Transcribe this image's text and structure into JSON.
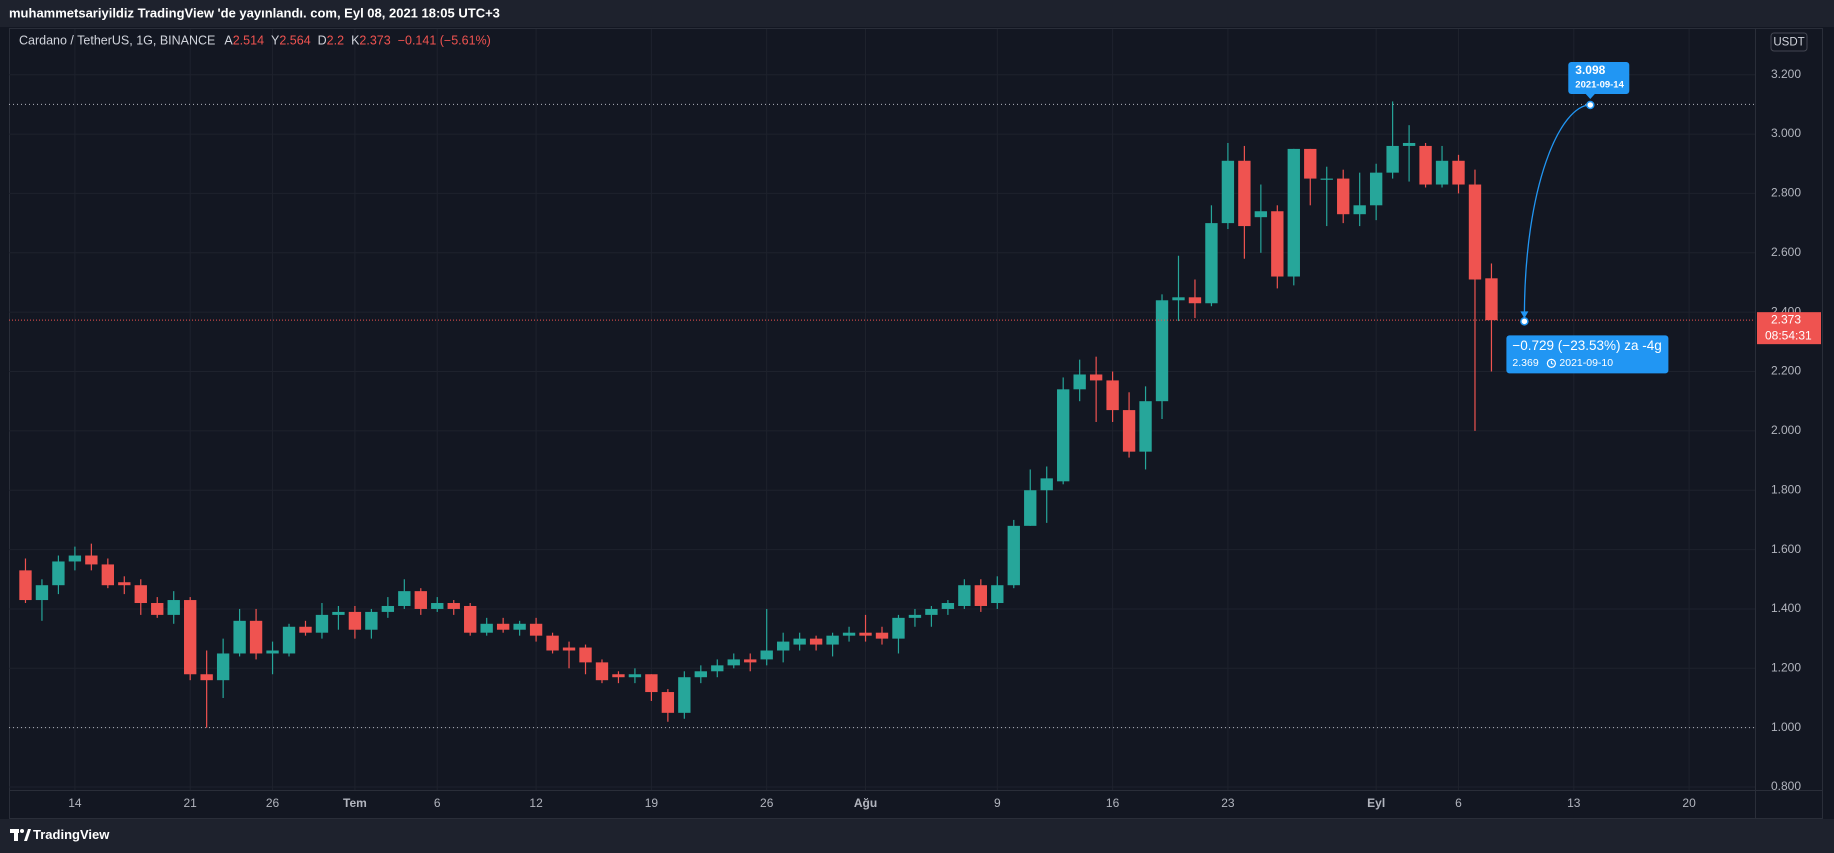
{
  "header": {
    "publisher": "muhammetsariyildiz TradingView 'de yayınlandı. com, Eyl 08, 2021 18:05 UTC+3"
  },
  "footer": {
    "brand": "TradingView"
  },
  "chart_data": {
    "type": "candlestick",
    "legend": {
      "symbol": "Cardano / TetherUS, 1G, BINANCE",
      "labels": [
        "A",
        "Y",
        "D",
        "K"
      ],
      "change": "−0.141 (−5.61%)"
    },
    "currency": "USDT",
    "countdown": "08:54:31",
    "up_color": "#26a69a",
    "down_color": "#ef5350",
    "grid": true,
    "x": [
      "2021-06-11",
      "2021-06-12",
      "2021-06-13",
      "2021-06-14",
      "2021-06-15",
      "2021-06-16",
      "2021-06-17",
      "2021-06-18",
      "2021-06-19",
      "2021-06-20",
      "2021-06-21",
      "2021-06-22",
      "2021-06-23",
      "2021-06-24",
      "2021-06-25",
      "2021-06-26",
      "2021-06-27",
      "2021-06-28",
      "2021-06-29",
      "2021-06-30",
      "2021-07-01",
      "2021-07-02",
      "2021-07-03",
      "2021-07-04",
      "2021-07-05",
      "2021-07-06",
      "2021-07-07",
      "2021-07-08",
      "2021-07-09",
      "2021-07-10",
      "2021-07-11",
      "2021-07-12",
      "2021-07-13",
      "2021-07-14",
      "2021-07-15",
      "2021-07-16",
      "2021-07-17",
      "2021-07-18",
      "2021-07-19",
      "2021-07-20",
      "2021-07-21",
      "2021-07-22",
      "2021-07-23",
      "2021-07-24",
      "2021-07-25",
      "2021-07-26",
      "2021-07-27",
      "2021-07-28",
      "2021-07-29",
      "2021-07-30",
      "2021-07-31",
      "2021-08-01",
      "2021-08-02",
      "2021-08-03",
      "2021-08-04",
      "2021-08-05",
      "2021-08-06",
      "2021-08-07",
      "2021-08-08",
      "2021-08-09",
      "2021-08-10",
      "2021-08-11",
      "2021-08-12",
      "2021-08-13",
      "2021-08-14",
      "2021-08-15",
      "2021-08-16",
      "2021-08-17",
      "2021-08-18",
      "2021-08-19",
      "2021-08-20",
      "2021-08-21",
      "2021-08-22",
      "2021-08-23",
      "2021-08-24",
      "2021-08-25",
      "2021-08-26",
      "2021-08-27",
      "2021-08-28",
      "2021-08-29",
      "2021-08-30",
      "2021-08-31",
      "2021-09-01",
      "2021-09-02",
      "2021-09-03",
      "2021-09-04",
      "2021-09-05",
      "2021-09-06",
      "2021-09-07",
      "2021-09-08"
    ],
    "open": [
      1.53,
      1.43,
      1.48,
      1.56,
      1.58,
      1.55,
      1.49,
      1.48,
      1.42,
      1.38,
      1.43,
      1.18,
      1.16,
      1.25,
      1.36,
      1.25,
      1.25,
      1.34,
      1.32,
      1.38,
      1.39,
      1.33,
      1.39,
      1.41,
      1.46,
      1.4,
      1.42,
      1.41,
      1.32,
      1.35,
      1.33,
      1.35,
      1.31,
      1.27,
      1.27,
      1.22,
      1.18,
      1.17,
      1.18,
      1.12,
      1.05,
      1.17,
      1.19,
      1.21,
      1.23,
      1.23,
      1.26,
      1.28,
      1.3,
      1.28,
      1.31,
      1.32,
      1.32,
      1.3,
      1.37,
      1.38,
      1.4,
      1.41,
      1.48,
      1.42,
      1.48,
      1.68,
      1.8,
      1.83,
      2.14,
      2.19,
      2.17,
      2.07,
      1.93,
      2.1,
      2.44,
      2.45,
      2.43,
      2.7,
      2.91,
      2.72,
      2.74,
      2.52,
      2.95,
      2.85,
      2.85,
      2.73,
      2.76,
      2.87,
      2.96,
      2.96,
      2.83,
      2.91,
      2.83,
      2.514
    ],
    "high": [
      1.57,
      1.5,
      1.58,
      1.61,
      1.62,
      1.57,
      1.51,
      1.5,
      1.44,
      1.46,
      1.44,
      1.26,
      1.3,
      1.4,
      1.4,
      1.29,
      1.35,
      1.36,
      1.42,
      1.41,
      1.41,
      1.4,
      1.44,
      1.5,
      1.47,
      1.44,
      1.43,
      1.42,
      1.37,
      1.37,
      1.36,
      1.37,
      1.32,
      1.29,
      1.28,
      1.23,
      1.19,
      1.2,
      1.18,
      1.13,
      1.19,
      1.21,
      1.23,
      1.25,
      1.25,
      1.4,
      1.32,
      1.32,
      1.31,
      1.32,
      1.34,
      1.38,
      1.34,
      1.38,
      1.4,
      1.41,
      1.43,
      1.5,
      1.5,
      1.51,
      1.7,
      1.87,
      1.88,
      2.18,
      2.24,
      2.25,
      2.2,
      2.13,
      2.15,
      2.46,
      2.59,
      2.51,
      2.76,
      2.97,
      2.96,
      2.83,
      2.76,
      2.95,
      2.95,
      2.89,
      2.88,
      2.87,
      2.9,
      3.11,
      3.03,
      2.97,
      2.96,
      2.93,
      2.88,
      2.564
    ],
    "low": [
      1.42,
      1.36,
      1.45,
      1.53,
      1.53,
      1.47,
      1.45,
      1.38,
      1.37,
      1.35,
      1.16,
      1.0,
      1.1,
      1.24,
      1.23,
      1.18,
      1.24,
      1.31,
      1.3,
      1.33,
      1.3,
      1.3,
      1.37,
      1.4,
      1.38,
      1.39,
      1.38,
      1.31,
      1.31,
      1.32,
      1.31,
      1.29,
      1.25,
      1.2,
      1.18,
      1.15,
      1.15,
      1.15,
      1.09,
      1.02,
      1.03,
      1.15,
      1.17,
      1.2,
      1.19,
      1.21,
      1.22,
      1.26,
      1.26,
      1.24,
      1.29,
      1.29,
      1.28,
      1.25,
      1.34,
      1.34,
      1.38,
      1.4,
      1.39,
      1.4,
      1.47,
      1.68,
      1.69,
      1.82,
      2.1,
      2.03,
      2.03,
      1.91,
      1.87,
      2.04,
      2.37,
      2.38,
      2.42,
      2.68,
      2.58,
      2.6,
      2.48,
      2.49,
      2.76,
      2.69,
      2.7,
      2.69,
      2.71,
      2.85,
      2.84,
      2.82,
      2.82,
      2.8,
      2.0,
      2.2
    ],
    "close": [
      1.43,
      1.48,
      1.56,
      1.58,
      1.55,
      1.48,
      1.48,
      1.42,
      1.38,
      1.43,
      1.18,
      1.16,
      1.25,
      1.36,
      1.25,
      1.26,
      1.34,
      1.32,
      1.38,
      1.39,
      1.33,
      1.39,
      1.41,
      1.46,
      1.4,
      1.42,
      1.4,
      1.32,
      1.35,
      1.33,
      1.35,
      1.31,
      1.26,
      1.26,
      1.22,
      1.16,
      1.17,
      1.18,
      1.12,
      1.05,
      1.17,
      1.19,
      1.21,
      1.23,
      1.22,
      1.26,
      1.29,
      1.3,
      1.28,
      1.31,
      1.32,
      1.31,
      1.3,
      1.37,
      1.38,
      1.4,
      1.42,
      1.48,
      1.41,
      1.48,
      1.68,
      1.8,
      1.84,
      2.14,
      2.19,
      2.17,
      2.07,
      1.93,
      2.1,
      2.44,
      2.45,
      2.43,
      2.7,
      2.91,
      2.69,
      2.74,
      2.52,
      2.95,
      2.85,
      2.85,
      2.73,
      2.76,
      2.87,
      2.96,
      2.97,
      2.83,
      2.91,
      2.83,
      2.51,
      2.373
    ],
    "xlim": [
      "2021-06-10",
      "2021-09-24"
    ],
    "xticks": [
      {
        "value": "2021-06-14",
        "label": "14"
      },
      {
        "value": "2021-06-21",
        "label": "21"
      },
      {
        "value": "2021-06-26",
        "label": "26"
      },
      {
        "value": "2021-07-01",
        "label": "Tem"
      },
      {
        "value": "2021-07-06",
        "label": "6"
      },
      {
        "value": "2021-07-12",
        "label": "12"
      },
      {
        "value": "2021-07-19",
        "label": "19"
      },
      {
        "value": "2021-07-26",
        "label": "26"
      },
      {
        "value": "2021-08-01",
        "label": "Ağu"
      },
      {
        "value": "2021-08-09",
        "label": "9"
      },
      {
        "value": "2021-08-16",
        "label": "16"
      },
      {
        "value": "2021-08-23",
        "label": "23"
      },
      {
        "value": "2021-09-01",
        "label": "Eyl"
      },
      {
        "value": "2021-09-06",
        "label": "6"
      },
      {
        "value": "2021-09-13",
        "label": "13"
      },
      {
        "value": "2021-09-20",
        "label": "20"
      }
    ],
    "ylim": [
      0.79,
      3.354
    ],
    "yticks": [
      {
        "value": 0.8,
        "label": "0.800"
      },
      {
        "value": 1.0,
        "label": "1.000"
      },
      {
        "value": 1.2,
        "label": "1.200"
      },
      {
        "value": 1.4,
        "label": "1.400"
      },
      {
        "value": 1.6,
        "label": "1.600"
      },
      {
        "value": 1.8,
        "label": "1.800"
      },
      {
        "value": 2.0,
        "label": "2.000"
      },
      {
        "value": 2.2,
        "label": "2.200"
      },
      {
        "value": 2.4,
        "label": "2.400"
      },
      {
        "value": 2.6,
        "label": "2.600"
      },
      {
        "value": 2.8,
        "label": "2.800"
      },
      {
        "value": 3.0,
        "label": "3.000"
      },
      {
        "value": 3.2,
        "label": "3.200"
      }
    ],
    "hlines": [
      3.1,
      1.0
    ],
    "measure": {
      "from_date": "2021-09-10",
      "from_value": 2.369,
      "to_date": "2021-09-14",
      "to_value": 3.098,
      "label": "−0.729 (−23.53%) za -4g",
      "color": "#2196f3"
    }
  }
}
